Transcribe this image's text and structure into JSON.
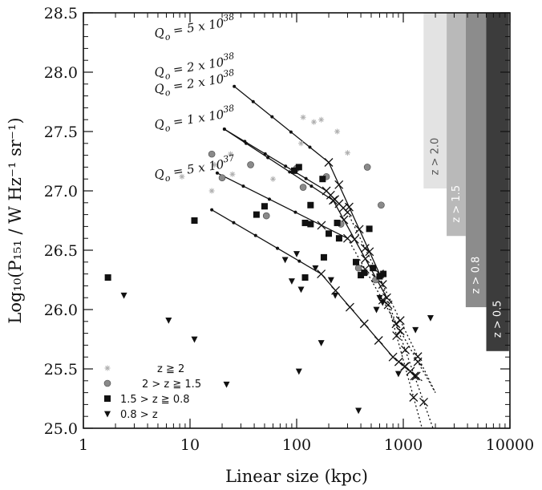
{
  "chart_data": {
    "type": "scatter",
    "title": "",
    "xlabel": "Linear size  (kpc)",
    "ylabel": "Log₁₀(P₁₅₁ / W Hz⁻¹ sr⁻¹)",
    "xscale": "log",
    "xlim": [
      1,
      10000
    ],
    "ylim": [
      25.0,
      28.5
    ],
    "x_ticks": [
      1,
      10,
      100,
      1000,
      10000
    ],
    "x_tick_labels": [
      "1",
      "10",
      "100",
      "1000",
      "10000"
    ],
    "y_ticks": [
      25.0,
      25.5,
      26.0,
      26.5,
      27.0,
      27.5,
      28.0,
      28.5
    ],
    "y_tick_labels": [
      "25.0",
      "25.5",
      "26.0",
      "26.5",
      "27.0",
      "27.5",
      "28.0",
      "28.5"
    ],
    "redshift_bands": [
      {
        "label": "z > 2.0",
        "x_range": [
          1550,
          2550
        ],
        "y_top": 28.5,
        "y_bottom": 27.02,
        "color": "#e3e3e3"
      },
      {
        "label": "z > 1.5",
        "x_range": [
          2550,
          3850
        ],
        "y_top": 28.5,
        "y_bottom": 26.62,
        "color": "#b9b9b9"
      },
      {
        "label": "z > 0.8",
        "x_range": [
          3850,
          6000
        ],
        "y_top": 28.5,
        "y_bottom": 26.02,
        "color": "#8c8c8c"
      },
      {
        "label": "z > 0.5",
        "x_range": [
          6000,
          9800
        ],
        "y_top": 28.5,
        "y_bottom": 25.65,
        "color": "#3c3c3c"
      }
    ],
    "tracks": [
      {
        "label": "Qo = 5 x 10^38",
        "mantissa": "5",
        "exponent": "38",
        "label_pos": [
          4.7,
          28.29
        ],
        "points": [
          [
            26,
            27.88
          ],
          [
            200,
            27.24
          ],
          [
            600,
            26.3
          ],
          [
            1500,
            25.0
          ]
        ]
      },
      {
        "label": "Qo = 2 x 10^38",
        "mantissa": "2",
        "exponent": "38",
        "label_pos": [
          4.7,
          27.96
        ],
        "points": [
          [
            21,
            27.52
          ],
          [
            220,
            26.92
          ],
          [
            700,
            26.1
          ],
          [
            1900,
            25.0
          ]
        ]
      },
      {
        "label": "Qo = 2 x 10^38",
        "mantissa": "2",
        "exponent": "38",
        "label_pos": [
          4.7,
          27.82
        ],
        "points": [
          [
            21,
            27.52
          ],
          [
            190,
            27.0
          ],
          [
            300,
            26.82
          ],
          [
            2000,
            25.3
          ]
        ]
      },
      {
        "label": "Qo = 1 x 10^38",
        "mantissa": "1",
        "exponent": "38",
        "label_pos": [
          4.7,
          27.52
        ],
        "points": [
          [
            18,
            27.15
          ],
          [
            300,
            26.6
          ],
          [
            2000,
            25.3
          ]
        ]
      },
      {
        "label": "Qo = 5 x 10^37",
        "mantissa": "5",
        "exponent": "37",
        "label_pos": [
          4.7,
          27.1
        ],
        "points": [
          [
            16,
            26.84
          ],
          [
            170,
            26.3
          ],
          [
            800,
            25.6
          ],
          [
            1500,
            25.4
          ]
        ]
      }
    ],
    "legend": [
      {
        "marker": "star",
        "label": "z ≧ 2"
      },
      {
        "marker": "circle",
        "label": "2 > z ≧ 1.5"
      },
      {
        "marker": "square",
        "label": "1.5 > z ≧ 0.8"
      },
      {
        "marker": "triangle",
        "label": "0.8 > z"
      }
    ],
    "series": [
      {
        "name": "z ≧ 2",
        "marker": "star",
        "points": [
          [
            8.4,
            27.12
          ],
          [
            17,
            27.22
          ],
          [
            24,
            27.31
          ],
          [
            16,
            27.0
          ],
          [
            60,
            27.1
          ],
          [
            115,
            27.62
          ],
          [
            145,
            27.58
          ],
          [
            110,
            27.4
          ],
          [
            240,
            27.5
          ],
          [
            170,
            27.6
          ],
          [
            300,
            27.32
          ],
          [
            25,
            27.14
          ]
        ]
      },
      {
        "name": "2 > z ≧ 1.5",
        "marker": "circle",
        "points": [
          [
            16,
            27.31
          ],
          [
            20,
            27.11
          ],
          [
            37,
            27.22
          ],
          [
            52,
            26.79
          ],
          [
            100,
            27.19
          ],
          [
            115,
            27.03
          ],
          [
            190,
            27.12
          ],
          [
            260,
            26.72
          ],
          [
            380,
            26.35
          ],
          [
            460,
            27.2
          ],
          [
            620,
            26.88
          ],
          [
            550,
            26.25
          ]
        ]
      },
      {
        "name": "1.5 > z ≧ 0.8",
        "marker": "square",
        "points": [
          [
            1.7,
            26.27
          ],
          [
            11,
            26.75
          ],
          [
            42,
            26.8
          ],
          [
            50,
            26.87
          ],
          [
            95,
            27.17
          ],
          [
            105,
            27.2
          ],
          [
            120,
            26.73
          ],
          [
            135,
            26.88
          ],
          [
            135,
            26.72
          ],
          [
            120,
            26.27
          ],
          [
            175,
            27.1
          ],
          [
            180,
            26.44
          ],
          [
            200,
            26.64
          ],
          [
            240,
            26.73
          ],
          [
            360,
            26.4
          ],
          [
            400,
            26.29
          ],
          [
            430,
            26.31
          ],
          [
            480,
            26.68
          ],
          [
            520,
            26.35
          ],
          [
            600,
            26.28
          ],
          [
            650,
            26.3
          ],
          [
            250,
            26.6
          ]
        ]
      },
      {
        "name": "0.8 > z",
        "marker": "triangle",
        "points": [
          [
            2.4,
            26.12
          ],
          [
            6.3,
            25.91
          ],
          [
            11,
            25.75
          ],
          [
            22,
            25.37
          ],
          [
            78,
            26.42
          ],
          [
            90,
            26.24
          ],
          [
            100,
            26.47
          ],
          [
            110,
            26.17
          ],
          [
            105,
            25.48
          ],
          [
            170,
            25.72
          ],
          [
            210,
            26.25
          ],
          [
            230,
            26.12
          ],
          [
            380,
            25.15
          ],
          [
            560,
            26.0
          ],
          [
            600,
            26.1
          ],
          [
            640,
            26.06
          ],
          [
            900,
            25.46
          ],
          [
            1300,
            25.83
          ],
          [
            1800,
            25.93
          ],
          [
            150,
            26.35
          ]
        ]
      }
    ]
  }
}
